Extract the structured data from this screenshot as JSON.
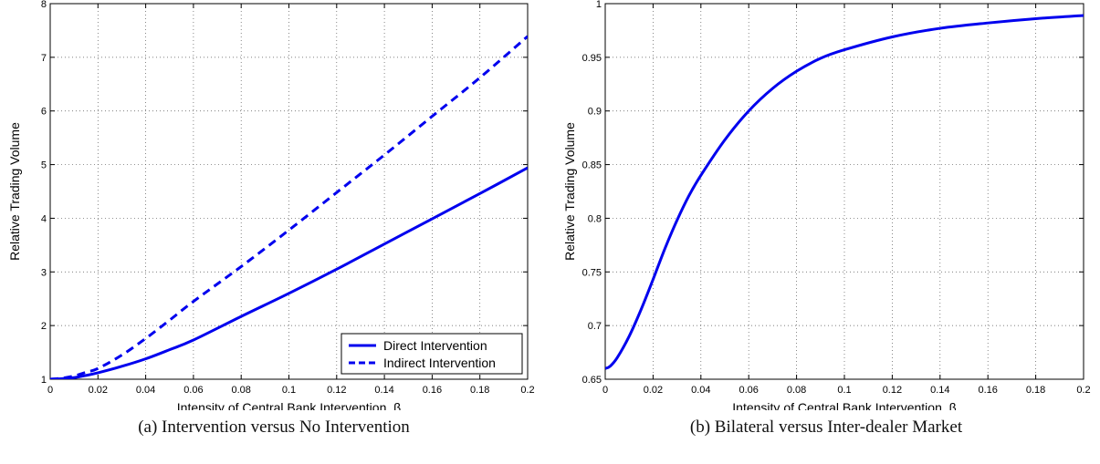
{
  "colors": {
    "line": "#0000ee",
    "axis": "#000000",
    "grid": "#555555",
    "background": "#ffffff"
  },
  "chart_data": [
    {
      "id": "a",
      "type": "line",
      "caption": "(a) Intervention versus No Intervention",
      "xlabel": "Intensity of Central Bank Intervention,  β",
      "ylabel": "Relative Trading Volume",
      "xlim": [
        0,
        0.2
      ],
      "ylim": [
        1,
        8
      ],
      "xticks": [
        0,
        0.02,
        0.04,
        0.06,
        0.08,
        0.1,
        0.12,
        0.14,
        0.16,
        0.18,
        0.2
      ],
      "xtick_labels": [
        "0",
        "0.02",
        "0.04",
        "0.06",
        "0.08",
        "0.1",
        "0.12",
        "0.14",
        "0.16",
        "0.18",
        "0.2"
      ],
      "yticks": [
        1,
        2,
        3,
        4,
        5,
        6,
        7,
        8
      ],
      "ytick_labels": [
        "1",
        "2",
        "3",
        "4",
        "5",
        "6",
        "7",
        "8"
      ],
      "grid": true,
      "legend_position": "bottom-right",
      "series": [
        {
          "name": "Direct Intervention",
          "style": "solid",
          "x": [
            0,
            0.005,
            0.01,
            0.015,
            0.02,
            0.03,
            0.04,
            0.05,
            0.06,
            0.08,
            0.1,
            0.12,
            0.14,
            0.16,
            0.18,
            0.2
          ],
          "y": [
            1.0,
            1.01,
            1.03,
            1.07,
            1.12,
            1.24,
            1.38,
            1.55,
            1.73,
            2.17,
            2.6,
            3.05,
            3.52,
            3.99,
            4.46,
            4.94
          ]
        },
        {
          "name": "Indirect Intervention",
          "style": "dashed",
          "x": [
            0,
            0.005,
            0.01,
            0.015,
            0.02,
            0.03,
            0.04,
            0.05,
            0.06,
            0.08,
            0.1,
            0.12,
            0.14,
            0.16,
            0.18,
            0.2
          ],
          "y": [
            1.0,
            1.02,
            1.06,
            1.13,
            1.2,
            1.45,
            1.76,
            2.1,
            2.45,
            3.1,
            3.78,
            4.48,
            5.18,
            5.9,
            6.62,
            7.39
          ]
        }
      ]
    },
    {
      "id": "b",
      "type": "line",
      "caption": "(b) Bilateral versus Inter-dealer Market",
      "xlabel": "Intensity of Central Bank Intervention,  β",
      "ylabel": "Relative Trading Volume",
      "xlim": [
        0,
        0.2
      ],
      "ylim": [
        0.65,
        1
      ],
      "xticks": [
        0,
        0.02,
        0.04,
        0.06,
        0.08,
        0.1,
        0.12,
        0.14,
        0.16,
        0.18,
        0.2
      ],
      "xtick_labels": [
        "0",
        "0.02",
        "0.04",
        "0.06",
        "0.08",
        "0.1",
        "0.12",
        "0.14",
        "0.16",
        "0.18",
        "0.2"
      ],
      "yticks": [
        0.65,
        0.7,
        0.75,
        0.8,
        0.85,
        0.9,
        0.95,
        1
      ],
      "ytick_labels": [
        "0.65",
        "0.7",
        "0.75",
        "0.8",
        "0.85",
        "0.9",
        "0.95",
        "1"
      ],
      "grid": true,
      "series": [
        {
          "style": "solid",
          "x": [
            0,
            0.002,
            0.005,
            0.01,
            0.015,
            0.02,
            0.025,
            0.03,
            0.035,
            0.04,
            0.05,
            0.06,
            0.07,
            0.08,
            0.09,
            0.1,
            0.12,
            0.14,
            0.16,
            0.18,
            0.2
          ],
          "y": [
            0.66,
            0.662,
            0.67,
            0.69,
            0.715,
            0.743,
            0.772,
            0.798,
            0.821,
            0.84,
            0.873,
            0.9,
            0.921,
            0.937,
            0.949,
            0.957,
            0.969,
            0.977,
            0.982,
            0.986,
            0.989
          ]
        }
      ]
    }
  ]
}
